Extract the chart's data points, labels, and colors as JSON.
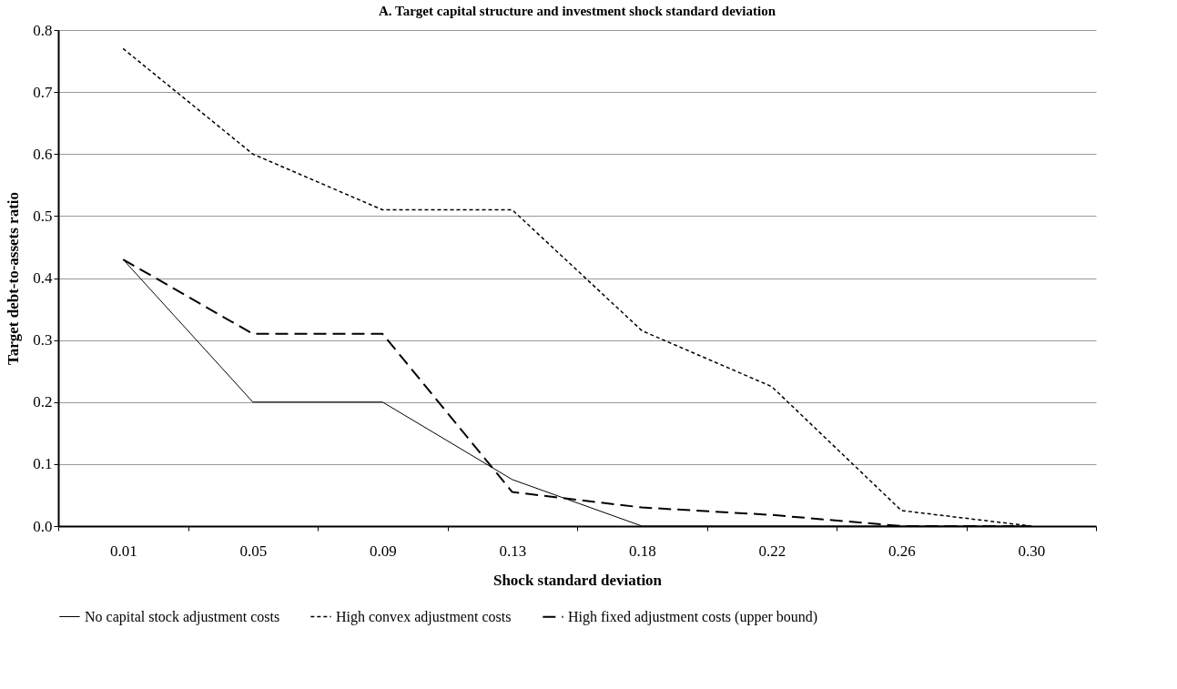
{
  "chart_data": {
    "type": "line",
    "title": "A. Target capital structure and investment shock standard deviation",
    "xlabel": "Shock standard deviation",
    "ylabel": "Target debt-to-assets  ratio",
    "categories": [
      "0.01",
      "0.05",
      "0.09",
      "0.13",
      "0.18",
      "0.22",
      "0.26",
      "0.30"
    ],
    "series": [
      {
        "name": "No capital stock adjustment costs",
        "color": "#000000",
        "line_style": "solid",
        "values": [
          0.43,
          0.2,
          0.2,
          0.075,
          0,
          0,
          0,
          0
        ]
      },
      {
        "name": "High convex adjustment costs",
        "color": "#000000",
        "line_style": "dotted",
        "values": [
          0.77,
          0.6,
          0.51,
          0.51,
          0.315,
          0.225,
          0.025,
          0
        ]
      },
      {
        "name": "High fixed adjustment costs (upper bound)",
        "color": "#000000",
        "line_style": "dashed",
        "values": [
          0.43,
          0.31,
          0.31,
          0.055,
          0.03,
          0.018,
          0,
          0
        ]
      }
    ],
    "ylim": [
      0,
      0.8
    ],
    "yticks": [
      {
        "value": 0,
        "label": "0.0"
      },
      0.1,
      0.2,
      0.3,
      0.4,
      0.5,
      0.6,
      0.7,
      0.8
    ],
    "grid": "y",
    "legend": "bottom",
    "marker": "none"
  }
}
